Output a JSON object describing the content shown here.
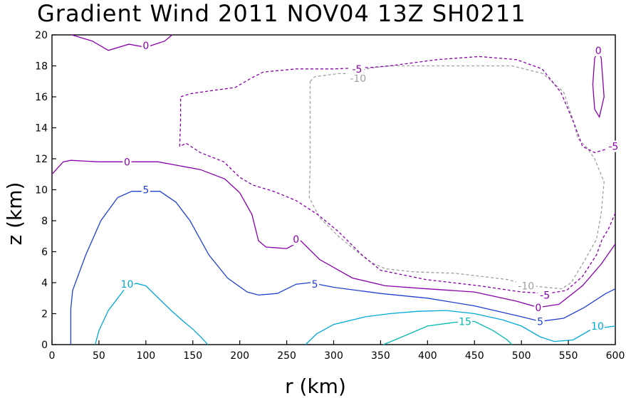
{
  "chart_data": {
    "type": "contour",
    "title": "Gradient Wind 2011 NOV04 13Z  SH0211",
    "xlabel": "r (km)",
    "ylabel": "z (km)",
    "xlim": [
      0,
      600
    ],
    "ylim": [
      0,
      20
    ],
    "x_ticks": [
      0,
      50,
      100,
      150,
      200,
      250,
      300,
      350,
      400,
      450,
      500,
      550,
      600
    ],
    "y_ticks": [
      0,
      2,
      4,
      6,
      8,
      10,
      12,
      14,
      16,
      18,
      20
    ],
    "x_tick_labels": [
      "0",
      "50",
      "100",
      "150",
      "200",
      "250",
      "300",
      "350",
      "400",
      "450",
      "500",
      "550",
      "600"
    ],
    "y_tick_labels": [
      "0",
      "2",
      "4",
      "6",
      "8",
      "10",
      "12",
      "14",
      "16",
      "18",
      "20"
    ],
    "grid": false,
    "contours": [
      {
        "level": -10,
        "label": "-10",
        "color": "#a0a0a0",
        "dashed": true,
        "label_points": [
          [
            326,
            17.2
          ],
          [
            505,
            3.8
          ]
        ],
        "paths": [
          [
            [
              275,
              17.0
            ],
            [
              280,
              17.3
            ],
            [
              305,
              17.5
            ],
            [
              320,
              17.5
            ],
            [
              335,
              17.8
            ],
            [
              345,
              17.9
            ],
            [
              360,
              18.0
            ],
            [
              420,
              18.0
            ],
            [
              490,
              18.0
            ],
            [
              523,
              17.5
            ],
            [
              545,
              16.3
            ],
            [
              555,
              14.5
            ],
            [
              560,
              13.3
            ],
            [
              570,
              12.7
            ],
            [
              578,
              12.0
            ],
            [
              588,
              10.5
            ],
            [
              585,
              8.5
            ],
            [
              580,
              6.8
            ],
            [
              565,
              5.2
            ],
            [
              553,
              4.0
            ],
            [
              543,
              3.6
            ],
            [
              510,
              3.8
            ],
            [
              485,
              4.2
            ],
            [
              430,
              4.6
            ],
            [
              385,
              4.7
            ],
            [
              355,
              4.9
            ],
            [
              340,
              5.3
            ],
            [
              325,
              6.0
            ],
            [
              305,
              7.0
            ],
            [
              285,
              8.2
            ],
            [
              274,
              9.5
            ],
            [
              275,
              11.5
            ],
            [
              275,
              14.5
            ],
            [
              275,
              17.0
            ]
          ]
        ]
      },
      {
        "level": -5,
        "label": "-5",
        "color": "#8800aa",
        "dashed": true,
        "label_points": [
          [
            325,
            17.8
          ],
          [
            525,
            3.2
          ],
          [
            598,
            12.8
          ]
        ],
        "paths": [
          [
            [
              136,
              12.8
            ],
            [
              137,
              14.5
            ],
            [
              137,
              16.0
            ],
            [
              147,
              16.2
            ],
            [
              170,
              16.4
            ],
            [
              195,
              16.6
            ],
            [
              212,
              17.2
            ],
            [
              225,
              17.6
            ],
            [
              260,
              17.8
            ],
            [
              300,
              17.8
            ],
            [
              340,
              17.9
            ],
            [
              360,
              18.0
            ],
            [
              410,
              18.4
            ],
            [
              455,
              18.6
            ],
            [
              495,
              18.4
            ],
            [
              522,
              17.8
            ],
            [
              542,
              16.3
            ],
            [
              556,
              14.3
            ],
            [
              565,
              12.8
            ],
            [
              578,
              12.4
            ],
            [
              595,
              12.7
            ]
          ],
          [
            [
              600,
              8.5
            ],
            [
              593,
              7.5
            ],
            [
              586,
              6.8
            ],
            [
              580,
              5.8
            ],
            [
              565,
              4.4
            ],
            [
              548,
              3.5
            ],
            [
              528,
              3.3
            ],
            [
              500,
              3.4
            ],
            [
              455,
              3.8
            ],
            [
              398,
              4.2
            ],
            [
              350,
              4.8
            ],
            [
              330,
              5.8
            ],
            [
              305,
              7.3
            ],
            [
              283,
              8.4
            ],
            [
              260,
              9.3
            ],
            [
              236,
              9.9
            ],
            [
              214,
              10.3
            ],
            [
              200,
              10.8
            ],
            [
              183,
              11.8
            ],
            [
              158,
              12.4
            ],
            [
              143,
              13.0
            ],
            [
              136,
              12.8
            ]
          ]
        ]
      },
      {
        "level": 0,
        "label": "0",
        "color": "#8800aa",
        "dashed": false,
        "label_points": [
          [
            100,
            19.3
          ],
          [
            80,
            11.8
          ],
          [
            260,
            6.8
          ],
          [
            518,
            2.4
          ],
          [
            582,
            19.0
          ]
        ],
        "paths": [
          [
            [
              21,
              20.0
            ],
            [
              43,
              19.6
            ],
            [
              60,
              19.0
            ],
            [
              82,
              19.4
            ],
            [
              100,
              19.2
            ],
            [
              120,
              19.6
            ],
            [
              128,
              20.0
            ]
          ],
          [
            [
              0,
              11.0
            ],
            [
              12,
              11.8
            ],
            [
              20,
              11.9
            ],
            [
              50,
              11.8
            ],
            [
              80,
              11.8
            ],
            [
              113,
              11.8
            ],
            [
              158,
              11.3
            ],
            [
              184,
              10.7
            ],
            [
              200,
              9.8
            ],
            [
              213,
              8.4
            ],
            [
              220,
              6.7
            ],
            [
              228,
              6.3
            ],
            [
              250,
              6.2
            ],
            [
              265,
              6.7
            ],
            [
              285,
              5.5
            ],
            [
              320,
              4.3
            ],
            [
              355,
              3.8
            ],
            [
              400,
              3.6
            ],
            [
              450,
              3.4
            ],
            [
              495,
              2.8
            ],
            [
              518,
              2.4
            ],
            [
              540,
              2.6
            ],
            [
              565,
              3.8
            ],
            [
              585,
              5.2
            ],
            [
              600,
              6.5
            ]
          ],
          [
            [
              578,
              18.5
            ],
            [
              582,
              19.0
            ],
            [
              585,
              18.5
            ],
            [
              588,
              16.0
            ],
            [
              583,
              14.7
            ],
            [
              578,
              15.2
            ],
            [
              576,
              16.8
            ],
            [
              578,
              18.5
            ]
          ]
        ]
      },
      {
        "level": 5,
        "label": "5",
        "color": "#2040d0",
        "dashed": false,
        "label_points": [
          [
            100,
            10.0
          ],
          [
            280,
            3.9
          ],
          [
            520,
            1.5
          ]
        ],
        "paths": [
          [
            [
              20,
              0.0
            ],
            [
              20,
              2.3
            ],
            [
              22,
              3.5
            ],
            [
              36,
              5.8
            ],
            [
              52,
              8.0
            ],
            [
              70,
              9.5
            ],
            [
              85,
              9.9
            ],
            [
              115,
              9.9
            ],
            [
              132,
              9.2
            ],
            [
              147,
              8.0
            ],
            [
              167,
              5.8
            ],
            [
              187,
              4.3
            ],
            [
              208,
              3.4
            ],
            [
              220,
              3.2
            ],
            [
              240,
              3.3
            ],
            [
              260,
              3.9
            ],
            [
              275,
              4.0
            ],
            [
              300,
              3.7
            ],
            [
              350,
              3.3
            ],
            [
              400,
              3.0
            ],
            [
              450,
              2.5
            ],
            [
              500,
              1.8
            ],
            [
              520,
              1.5
            ],
            [
              545,
              1.7
            ],
            [
              567,
              2.4
            ],
            [
              590,
              3.3
            ],
            [
              600,
              3.6
            ]
          ]
        ]
      },
      {
        "level": 10,
        "label": "10",
        "color": "#00a8d8",
        "dashed": false,
        "label_points": [
          [
            80,
            3.9
          ],
          [
            581,
            1.2
          ]
        ],
        "paths": [
          [
            [
              46,
              0.0
            ],
            [
              50,
              0.9
            ],
            [
              60,
              2.2
            ],
            [
              70,
              3.0
            ],
            [
              80,
              3.8
            ],
            [
              90,
              3.95
            ],
            [
              100,
              3.8
            ],
            [
              110,
              3.2
            ],
            [
              127,
              2.2
            ],
            [
              140,
              1.5
            ],
            [
              150,
              1.0
            ],
            [
              160,
              0.4
            ],
            [
              166,
              0.0
            ]
          ],
          [
            [
              270,
              0.0
            ],
            [
              282,
              0.7
            ],
            [
              300,
              1.3
            ],
            [
              334,
              1.8
            ],
            [
              360,
              2.0
            ],
            [
              390,
              2.15
            ],
            [
              420,
              2.2
            ],
            [
              450,
              2.0
            ],
            [
              480,
              1.6
            ],
            [
              500,
              1.2
            ],
            [
              520,
              0.5
            ],
            [
              535,
              0.2
            ],
            [
              555,
              0.3
            ],
            [
              575,
              1.0
            ],
            [
              600,
              1.2
            ]
          ]
        ]
      },
      {
        "level": 15,
        "label": "15",
        "color": "#00b8b0",
        "dashed": false,
        "label_points": [
          [
            440,
            1.5
          ]
        ],
        "paths": [
          [
            [
              353,
              0.0
            ],
            [
              375,
              0.55
            ],
            [
              400,
              1.2
            ],
            [
              430,
              1.45
            ],
            [
              450,
              1.5
            ],
            [
              470,
              0.9
            ],
            [
              485,
              0.3
            ],
            [
              490,
              0.0
            ]
          ]
        ]
      }
    ]
  }
}
